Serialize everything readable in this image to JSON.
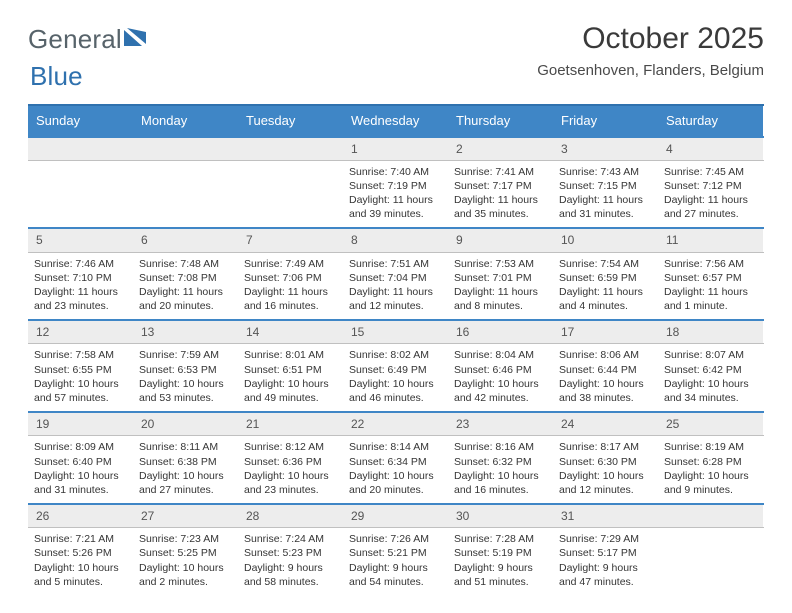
{
  "brand": {
    "word1": "General",
    "word2": "Blue"
  },
  "title": "October 2025",
  "location": "Goetsenhoven, Flanders, Belgium",
  "colors": {
    "accent": "#3f86c6",
    "accent_border": "#2f71ae",
    "daynum_bg": "#ededed",
    "text": "#3a3a3a",
    "page_bg": "#ffffff"
  },
  "weekdays": [
    "Sunday",
    "Monday",
    "Tuesday",
    "Wednesday",
    "Thursday",
    "Friday",
    "Saturday"
  ],
  "weeks": [
    {
      "nums": [
        "",
        "",
        "",
        "1",
        "2",
        "3",
        "4"
      ],
      "details": [
        {},
        {},
        {},
        {
          "sunrise": "Sunrise: 7:40 AM",
          "sunset": "Sunset: 7:19 PM",
          "daylight": "Daylight: 11 hours and 39 minutes."
        },
        {
          "sunrise": "Sunrise: 7:41 AM",
          "sunset": "Sunset: 7:17 PM",
          "daylight": "Daylight: 11 hours and 35 minutes."
        },
        {
          "sunrise": "Sunrise: 7:43 AM",
          "sunset": "Sunset: 7:15 PM",
          "daylight": "Daylight: 11 hours and 31 minutes."
        },
        {
          "sunrise": "Sunrise: 7:45 AM",
          "sunset": "Sunset: 7:12 PM",
          "daylight": "Daylight: 11 hours and 27 minutes."
        }
      ]
    },
    {
      "nums": [
        "5",
        "6",
        "7",
        "8",
        "9",
        "10",
        "11"
      ],
      "details": [
        {
          "sunrise": "Sunrise: 7:46 AM",
          "sunset": "Sunset: 7:10 PM",
          "daylight": "Daylight: 11 hours and 23 minutes."
        },
        {
          "sunrise": "Sunrise: 7:48 AM",
          "sunset": "Sunset: 7:08 PM",
          "daylight": "Daylight: 11 hours and 20 minutes."
        },
        {
          "sunrise": "Sunrise: 7:49 AM",
          "sunset": "Sunset: 7:06 PM",
          "daylight": "Daylight: 11 hours and 16 minutes."
        },
        {
          "sunrise": "Sunrise: 7:51 AM",
          "sunset": "Sunset: 7:04 PM",
          "daylight": "Daylight: 11 hours and 12 minutes."
        },
        {
          "sunrise": "Sunrise: 7:53 AM",
          "sunset": "Sunset: 7:01 PM",
          "daylight": "Daylight: 11 hours and 8 minutes."
        },
        {
          "sunrise": "Sunrise: 7:54 AM",
          "sunset": "Sunset: 6:59 PM",
          "daylight": "Daylight: 11 hours and 4 minutes."
        },
        {
          "sunrise": "Sunrise: 7:56 AM",
          "sunset": "Sunset: 6:57 PM",
          "daylight": "Daylight: 11 hours and 1 minute."
        }
      ]
    },
    {
      "nums": [
        "12",
        "13",
        "14",
        "15",
        "16",
        "17",
        "18"
      ],
      "details": [
        {
          "sunrise": "Sunrise: 7:58 AM",
          "sunset": "Sunset: 6:55 PM",
          "daylight": "Daylight: 10 hours and 57 minutes."
        },
        {
          "sunrise": "Sunrise: 7:59 AM",
          "sunset": "Sunset: 6:53 PM",
          "daylight": "Daylight: 10 hours and 53 minutes."
        },
        {
          "sunrise": "Sunrise: 8:01 AM",
          "sunset": "Sunset: 6:51 PM",
          "daylight": "Daylight: 10 hours and 49 minutes."
        },
        {
          "sunrise": "Sunrise: 8:02 AM",
          "sunset": "Sunset: 6:49 PM",
          "daylight": "Daylight: 10 hours and 46 minutes."
        },
        {
          "sunrise": "Sunrise: 8:04 AM",
          "sunset": "Sunset: 6:46 PM",
          "daylight": "Daylight: 10 hours and 42 minutes."
        },
        {
          "sunrise": "Sunrise: 8:06 AM",
          "sunset": "Sunset: 6:44 PM",
          "daylight": "Daylight: 10 hours and 38 minutes."
        },
        {
          "sunrise": "Sunrise: 8:07 AM",
          "sunset": "Sunset: 6:42 PM",
          "daylight": "Daylight: 10 hours and 34 minutes."
        }
      ]
    },
    {
      "nums": [
        "19",
        "20",
        "21",
        "22",
        "23",
        "24",
        "25"
      ],
      "details": [
        {
          "sunrise": "Sunrise: 8:09 AM",
          "sunset": "Sunset: 6:40 PM",
          "daylight": "Daylight: 10 hours and 31 minutes."
        },
        {
          "sunrise": "Sunrise: 8:11 AM",
          "sunset": "Sunset: 6:38 PM",
          "daylight": "Daylight: 10 hours and 27 minutes."
        },
        {
          "sunrise": "Sunrise: 8:12 AM",
          "sunset": "Sunset: 6:36 PM",
          "daylight": "Daylight: 10 hours and 23 minutes."
        },
        {
          "sunrise": "Sunrise: 8:14 AM",
          "sunset": "Sunset: 6:34 PM",
          "daylight": "Daylight: 10 hours and 20 minutes."
        },
        {
          "sunrise": "Sunrise: 8:16 AM",
          "sunset": "Sunset: 6:32 PM",
          "daylight": "Daylight: 10 hours and 16 minutes."
        },
        {
          "sunrise": "Sunrise: 8:17 AM",
          "sunset": "Sunset: 6:30 PM",
          "daylight": "Daylight: 10 hours and 12 minutes."
        },
        {
          "sunrise": "Sunrise: 8:19 AM",
          "sunset": "Sunset: 6:28 PM",
          "daylight": "Daylight: 10 hours and 9 minutes."
        }
      ]
    },
    {
      "nums": [
        "26",
        "27",
        "28",
        "29",
        "30",
        "31",
        ""
      ],
      "details": [
        {
          "sunrise": "Sunrise: 7:21 AM",
          "sunset": "Sunset: 5:26 PM",
          "daylight": "Daylight: 10 hours and 5 minutes."
        },
        {
          "sunrise": "Sunrise: 7:23 AM",
          "sunset": "Sunset: 5:25 PM",
          "daylight": "Daylight: 10 hours and 2 minutes."
        },
        {
          "sunrise": "Sunrise: 7:24 AM",
          "sunset": "Sunset: 5:23 PM",
          "daylight": "Daylight: 9 hours and 58 minutes."
        },
        {
          "sunrise": "Sunrise: 7:26 AM",
          "sunset": "Sunset: 5:21 PM",
          "daylight": "Daylight: 9 hours and 54 minutes."
        },
        {
          "sunrise": "Sunrise: 7:28 AM",
          "sunset": "Sunset: 5:19 PM",
          "daylight": "Daylight: 9 hours and 51 minutes."
        },
        {
          "sunrise": "Sunrise: 7:29 AM",
          "sunset": "Sunset: 5:17 PM",
          "daylight": "Daylight: 9 hours and 47 minutes."
        },
        {}
      ]
    }
  ]
}
